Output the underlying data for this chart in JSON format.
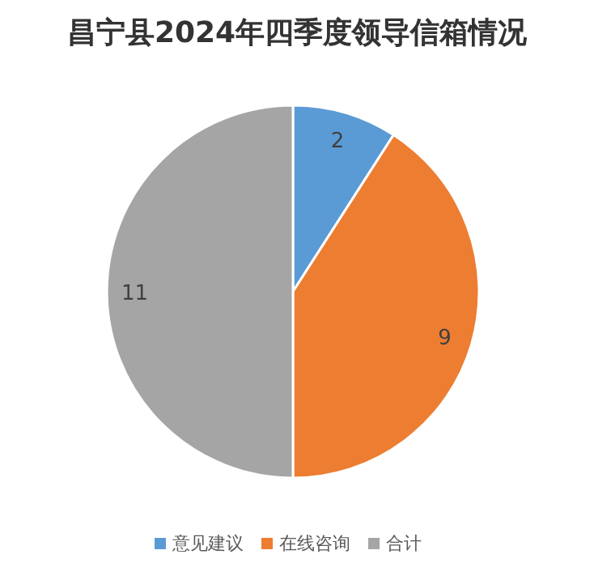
{
  "chart_data": {
    "type": "pie",
    "title": "昌宁县2024年四季度领导信箱情况",
    "categories": [
      "意见建议",
      "在线咨询",
      "合计"
    ],
    "values": [
      2,
      9,
      11
    ],
    "colors": [
      "#5b9bd5",
      "#ed7d31",
      "#a5a5a5"
    ],
    "data_labels": true,
    "legend": "bottom"
  }
}
